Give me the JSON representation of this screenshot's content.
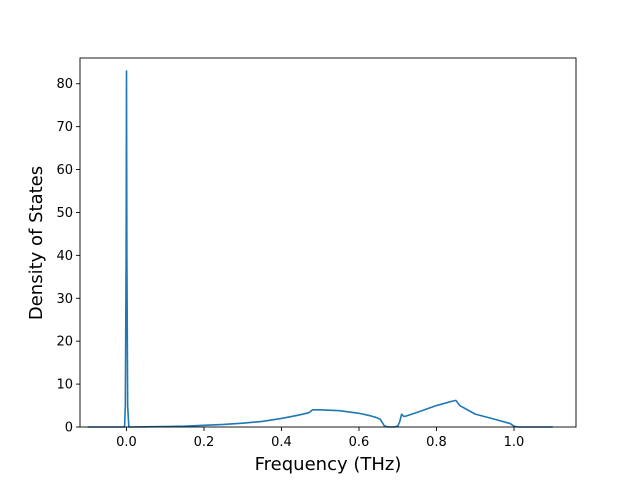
{
  "chart_data": {
    "type": "line",
    "title": "",
    "xlabel": "Frequency (THz)",
    "ylabel": "Density of States",
    "xlim": [
      -0.12,
      1.16
    ],
    "ylim": [
      0,
      86
    ],
    "xticks": [
      0.0,
      0.2,
      0.4,
      0.6,
      0.8,
      1.0
    ],
    "xtick_labels": [
      "0.0",
      "0.2",
      "0.4",
      "0.6",
      "0.8",
      "1.0"
    ],
    "yticks": [
      0,
      10,
      20,
      30,
      40,
      50,
      60,
      70,
      80
    ],
    "ytick_labels": [
      "0",
      "10",
      "20",
      "30",
      "40",
      "50",
      "60",
      "70",
      "80"
    ],
    "grid": false,
    "legend": "none",
    "series": [
      {
        "color": "#1f77b4",
        "x": [
          -0.1,
          -0.005,
          -0.003,
          -0.001,
          0.0,
          0.001,
          0.003,
          0.006,
          0.05,
          0.1,
          0.15,
          0.2,
          0.25,
          0.3,
          0.35,
          0.4,
          0.44,
          0.47,
          0.48,
          0.5,
          0.55,
          0.6,
          0.63,
          0.645,
          0.655,
          0.665,
          0.675,
          0.69,
          0.7,
          0.705,
          0.71,
          0.715,
          0.72,
          0.75,
          0.8,
          0.84,
          0.85,
          0.86,
          0.9,
          0.95,
          0.99,
          1.0,
          1.01,
          1.05,
          1.1
        ],
        "y": [
          0,
          0,
          5,
          40,
          83,
          40,
          5,
          0,
          0.05,
          0.1,
          0.2,
          0.4,
          0.6,
          0.9,
          1.3,
          2.0,
          2.7,
          3.3,
          4.0,
          4.0,
          3.8,
          3.2,
          2.6,
          2.2,
          1.8,
          0.3,
          0.0,
          0.0,
          0.2,
          1.2,
          3.0,
          2.5,
          2.5,
          3.4,
          5.0,
          6.0,
          6.2,
          5.0,
          3.0,
          1.8,
          0.8,
          0.2,
          0,
          0,
          0
        ]
      }
    ]
  }
}
